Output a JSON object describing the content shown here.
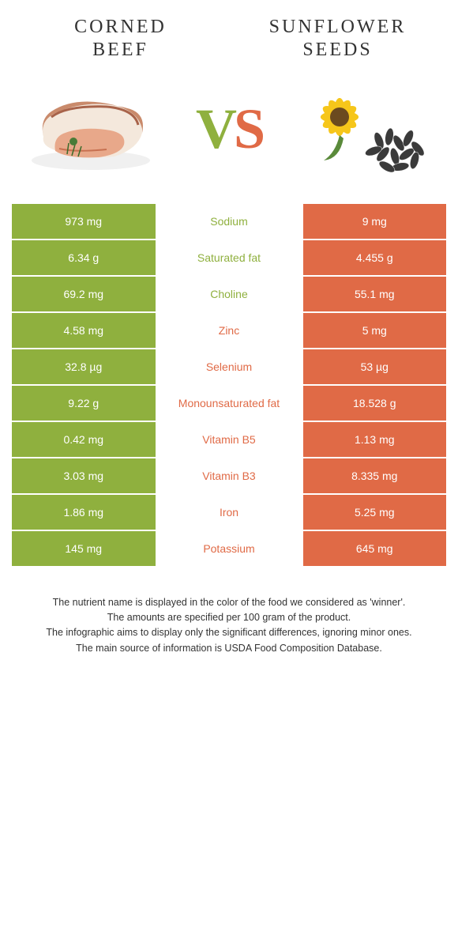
{
  "titles": {
    "left": "CORNED\nBEEF",
    "right": "SUNFLOWER\nSEEDS"
  },
  "vs": {
    "v": "V",
    "s": "S"
  },
  "colors": {
    "left_bg": "#8fb03e",
    "right_bg": "#e06a46",
    "left_text": "#8fb03e",
    "right_text": "#e06a46",
    "background": "#ffffff"
  },
  "rows": [
    {
      "left": "973 mg",
      "label": "Sodium",
      "right": "9 mg",
      "winner": "left"
    },
    {
      "left": "6.34 g",
      "label": "Saturated fat",
      "right": "4.455 g",
      "winner": "left"
    },
    {
      "left": "69.2 mg",
      "label": "Choline",
      "right": "55.1 mg",
      "winner": "left"
    },
    {
      "left": "4.58 mg",
      "label": "Zinc",
      "right": "5 mg",
      "winner": "right"
    },
    {
      "left": "32.8 µg",
      "label": "Selenium",
      "right": "53 µg",
      "winner": "right"
    },
    {
      "left": "9.22 g",
      "label": "Monounsaturated fat",
      "right": "18.528 g",
      "winner": "right"
    },
    {
      "left": "0.42 mg",
      "label": "Vitamin B5",
      "right": "1.13 mg",
      "winner": "right"
    },
    {
      "left": "3.03 mg",
      "label": "Vitamin B3",
      "right": "8.335 mg",
      "winner": "right"
    },
    {
      "left": "1.86 mg",
      "label": "Iron",
      "right": "5.25 mg",
      "winner": "right"
    },
    {
      "left": "145 mg",
      "label": "Potassium",
      "right": "645 mg",
      "winner": "right"
    }
  ],
  "footer": [
    "The nutrient name is displayed in the color of the food we considered as 'winner'.",
    "The amounts are specified per 100 gram of the product.",
    "The infographic aims to display only the significant differences, ignoring minor ones.",
    "The main source of information is USDA Food Composition Database."
  ]
}
